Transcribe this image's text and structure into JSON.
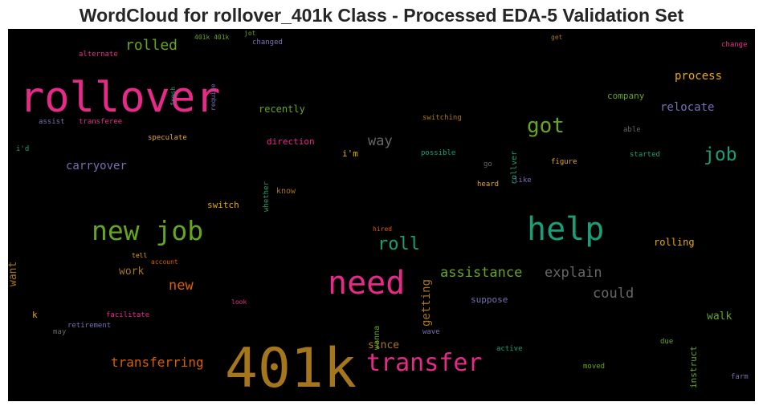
{
  "title": "WordCloud for rollover_401k Class - Processed EDA-5 Validation Set",
  "chart_data": {
    "type": "wordcloud",
    "background": "#000000",
    "words": [
      {
        "text": "rollover",
        "color": "#e7298a"
      },
      {
        "text": "401k",
        "color": "#a6761d"
      },
      {
        "text": "need",
        "color": "#e7298a"
      },
      {
        "text": "help",
        "color": "#1b9e77"
      },
      {
        "text": "new job",
        "color": "#66a61e"
      },
      {
        "text": "transfer",
        "color": "#e7298a"
      },
      {
        "text": "got",
        "color": "#66a61e"
      },
      {
        "text": "job",
        "color": "#1b9e77"
      },
      {
        "text": "roll",
        "color": "#1b9e77"
      },
      {
        "text": "rolled",
        "color": "#66a61e"
      },
      {
        "text": "assistance",
        "color": "#66a61e"
      },
      {
        "text": "explain",
        "color": "#666666"
      },
      {
        "text": "transferring",
        "color": "#d95f02"
      },
      {
        "text": "new",
        "color": "#d95f02"
      },
      {
        "text": "way",
        "color": "#666666"
      },
      {
        "text": "could",
        "color": "#666666"
      },
      {
        "text": "process",
        "color": "#e6ab02"
      },
      {
        "text": "relocate",
        "color": "#7570b3"
      },
      {
        "text": "carryover",
        "color": "#7570b3"
      },
      {
        "text": "walk",
        "color": "#66a61e"
      },
      {
        "text": "since",
        "color": "#a6761d"
      },
      {
        "text": "getting",
        "color": "#a6761d"
      },
      {
        "text": "work",
        "color": "#a6761d"
      },
      {
        "text": "want",
        "color": "#a6761d"
      },
      {
        "text": "rolling",
        "color": "#e6ab02"
      },
      {
        "text": "instruct",
        "color": "#66a61e"
      },
      {
        "text": "recently",
        "color": "#66a61e"
      },
      {
        "text": "company",
        "color": "#66a61e"
      },
      {
        "text": "i'm",
        "color": "#e6ab02"
      },
      {
        "text": "direction",
        "color": "#e7298a"
      },
      {
        "text": "switch",
        "color": "#e6ab02"
      },
      {
        "text": "know",
        "color": "#a6761d"
      },
      {
        "text": "suppose",
        "color": "#7570b3"
      },
      {
        "text": "wanna",
        "color": "#66a61e"
      },
      {
        "text": "rollver",
        "color": "#1b9e77"
      },
      {
        "text": "whether",
        "color": "#1b9e77"
      },
      {
        "text": "speculate",
        "color": "#e6ab02"
      },
      {
        "text": "switching",
        "color": "#a6761d"
      },
      {
        "text": "possible",
        "color": "#1b9e77"
      },
      {
        "text": "figure",
        "color": "#e6ab02"
      },
      {
        "text": "started",
        "color": "#1b9e77"
      },
      {
        "text": "able",
        "color": "#666666"
      },
      {
        "text": "heard",
        "color": "#e6ab02"
      },
      {
        "text": "like",
        "color": "#7570b3"
      },
      {
        "text": "go",
        "color": "#666666"
      },
      {
        "text": "assist",
        "color": "#7570b3"
      },
      {
        "text": "transferee",
        "color": "#e7298a"
      },
      {
        "text": "i'd",
        "color": "#1b9e77"
      },
      {
        "text": "alternate",
        "color": "#e7298a"
      },
      {
        "text": "fresh",
        "color": "#1b9e77"
      },
      {
        "text": "require",
        "color": "#7570b3"
      },
      {
        "text": "401k 401k",
        "color": "#66a61e"
      },
      {
        "text": "jot",
        "color": "#66a61e"
      },
      {
        "text": "changed",
        "color": "#7570b3"
      },
      {
        "text": "get",
        "color": "#a6761d"
      },
      {
        "text": "change",
        "color": "#e7298a"
      },
      {
        "text": "tell",
        "color": "#e6ab02"
      },
      {
        "text": "account",
        "color": "#d95f02"
      },
      {
        "text": "hired",
        "color": "#d95f02"
      },
      {
        "text": "look",
        "color": "#e7298a"
      },
      {
        "text": "k",
        "color": "#e6ab02"
      },
      {
        "text": "facilitate",
        "color": "#e7298a"
      },
      {
        "text": "retirement",
        "color": "#7570b3"
      },
      {
        "text": "may",
        "color": "#666666"
      },
      {
        "text": "wave",
        "color": "#7570b3"
      },
      {
        "text": "active",
        "color": "#1b9e77"
      },
      {
        "text": "moved",
        "color": "#66a61e"
      },
      {
        "text": "due",
        "color": "#66a61e"
      },
      {
        "text": "farm",
        "color": "#7570b3"
      }
    ]
  }
}
